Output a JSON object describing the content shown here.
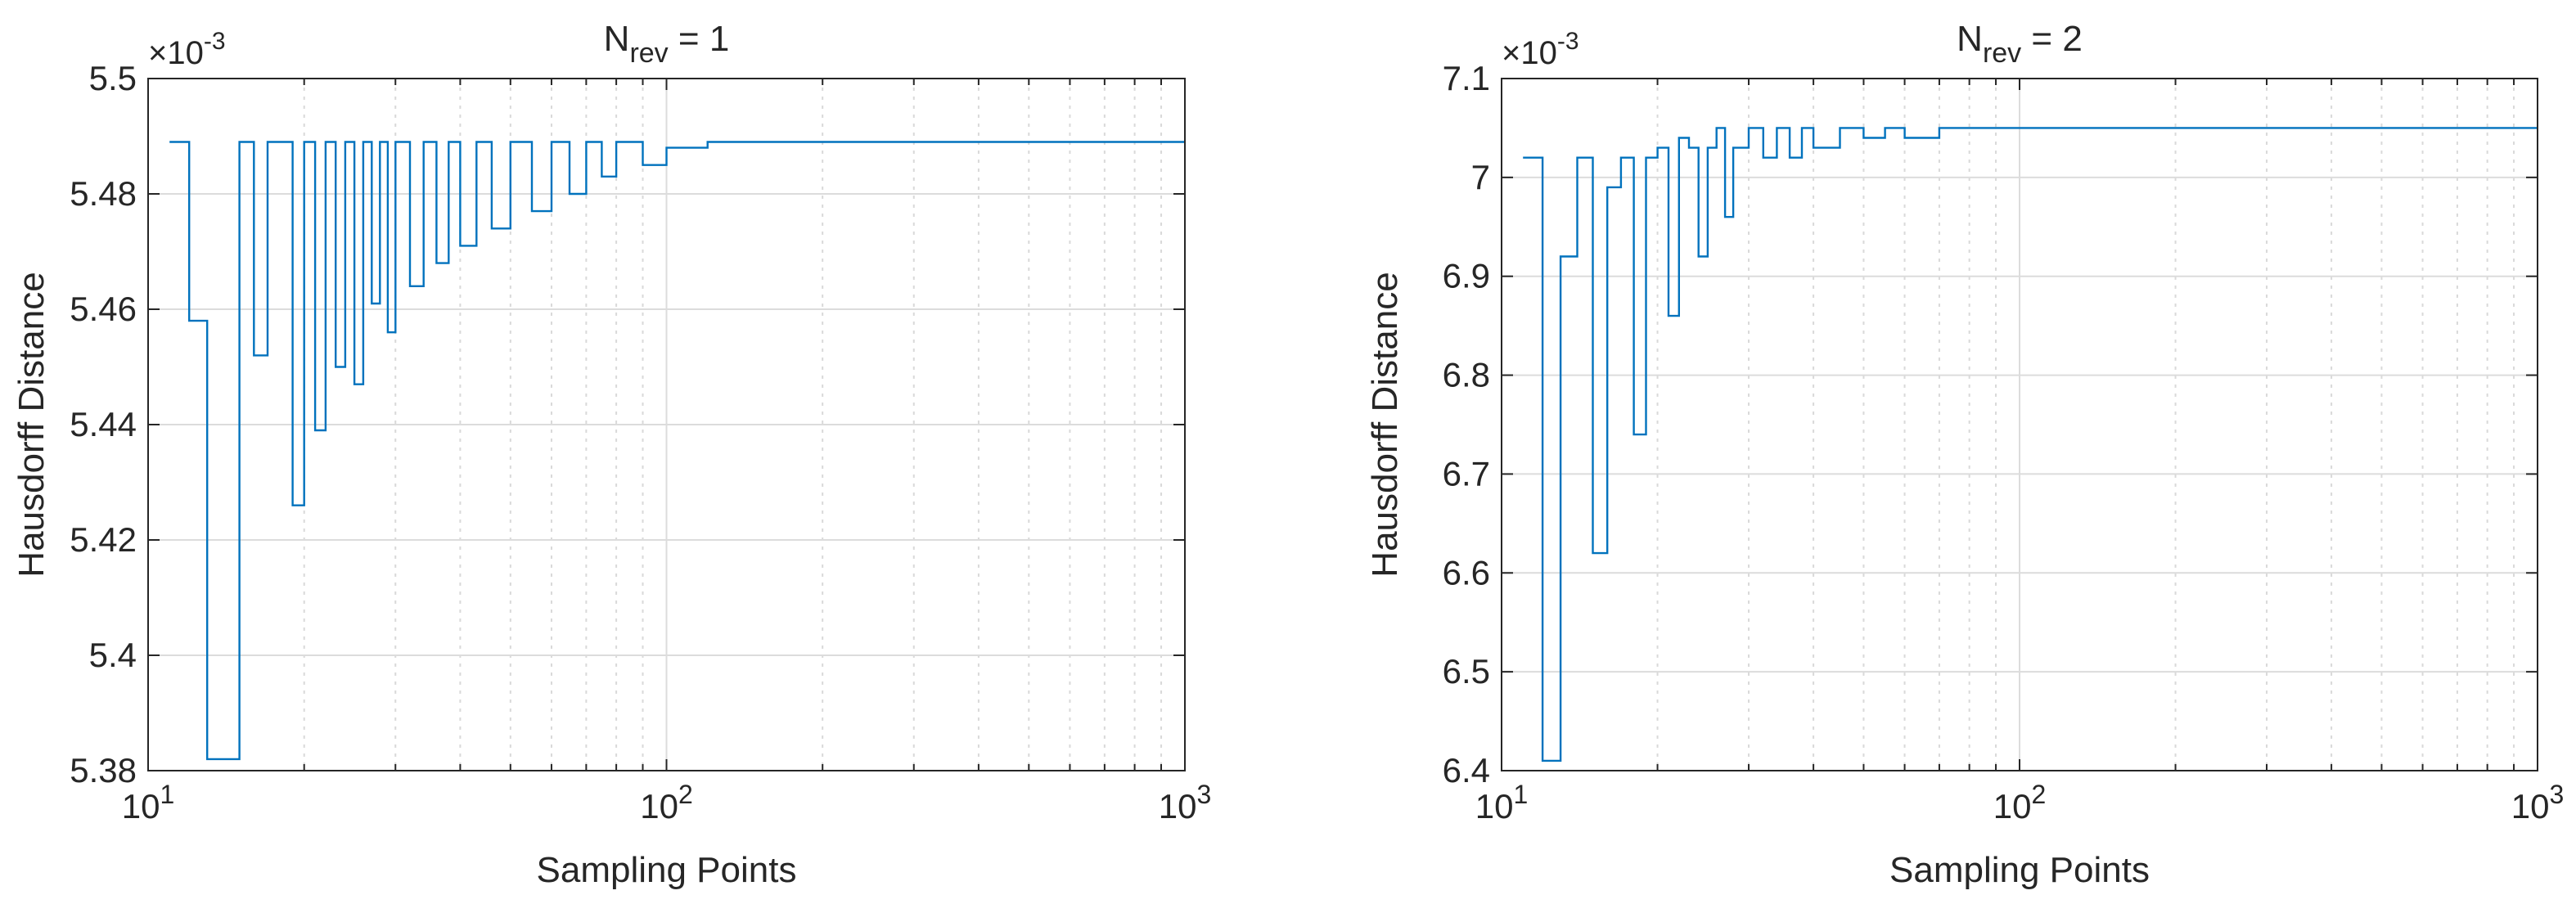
{
  "chart_data": [
    {
      "type": "line",
      "title_main": "N",
      "title_sub": "rev",
      "title_tail": " = 1",
      "xlabel": "Sampling Points",
      "ylabel": "Hausdorff Distance",
      "xscale": "log",
      "xlim": [
        10,
        1000
      ],
      "ylim": [
        0.00538,
        0.0055
      ],
      "xticks": [
        10,
        100,
        1000
      ],
      "xtick_base": "10",
      "xtick_exponents": [
        "1",
        "2",
        "3"
      ],
      "yticks": [
        0.00538,
        0.0054,
        0.00542,
        0.00544,
        0.00546,
        0.00548,
        0.0055
      ],
      "ytick_labels": [
        "5.38",
        "5.4",
        "5.42",
        "5.44",
        "5.46",
        "5.48",
        "5.5"
      ],
      "y_multiplier_base": "×10",
      "y_multiplier_exp": "-3",
      "grid": true,
      "series": [
        {
          "color": "#0072bd",
          "step": true,
          "x": [
            11,
            12,
            13,
            15,
            16,
            17,
            19,
            20,
            21,
            22,
            23,
            24,
            25,
            26,
            27,
            28,
            29,
            30,
            32,
            34,
            36,
            38,
            40,
            43,
            46,
            50,
            55,
            60,
            65,
            70,
            75,
            80,
            90,
            100,
            120,
            150,
            200,
            300,
            500,
            1000
          ],
          "y": [
            0.005489,
            0.005458,
            0.005382,
            0.005489,
            0.005452,
            0.005489,
            0.005426,
            0.005489,
            0.005439,
            0.005489,
            0.00545,
            0.005489,
            0.005447,
            0.005489,
            0.005461,
            0.005489,
            0.005456,
            0.005489,
            0.005464,
            0.005489,
            0.005468,
            0.005489,
            0.005471,
            0.005489,
            0.005474,
            0.005489,
            0.005477,
            0.005489,
            0.00548,
            0.005489,
            0.005483,
            0.005489,
            0.005485,
            0.005488,
            0.005489,
            0.005489,
            0.005489,
            0.005489,
            0.005489,
            0.005489
          ]
        }
      ]
    },
    {
      "type": "line",
      "title_main": "N",
      "title_sub": "rev",
      "title_tail": " = 2",
      "xlabel": "Sampling Points",
      "ylabel": "Hausdorff Distance",
      "xscale": "log",
      "xlim": [
        10,
        1000
      ],
      "ylim": [
        0.0064,
        0.0071
      ],
      "xticks": [
        10,
        100,
        1000
      ],
      "xtick_base": "10",
      "xtick_exponents": [
        "1",
        "2",
        "3"
      ],
      "yticks": [
        0.0064,
        0.0065,
        0.0066,
        0.0067,
        0.0068,
        0.0069,
        0.007,
        0.0071
      ],
      "ytick_labels": [
        "6.4",
        "6.5",
        "6.6",
        "6.7",
        "6.8",
        "6.9",
        "7",
        "7.1"
      ],
      "y_multiplier_base": "×10",
      "y_multiplier_exp": "-3",
      "grid": true,
      "series": [
        {
          "color": "#0072bd",
          "step": true,
          "x": [
            11,
            12,
            13,
            14,
            15,
            16,
            17,
            18,
            19,
            20,
            21,
            22,
            23,
            24,
            25,
            26,
            27,
            28,
            30,
            32,
            34,
            36,
            38,
            40,
            45,
            50,
            55,
            60,
            70,
            80,
            100,
            150,
            200,
            1000
          ],
          "y": [
            0.00702,
            0.00641,
            0.00692,
            0.00702,
            0.00662,
            0.00699,
            0.00702,
            0.00674,
            0.00702,
            0.00703,
            0.00686,
            0.00704,
            0.00703,
            0.00692,
            0.00703,
            0.00705,
            0.00696,
            0.00703,
            0.00705,
            0.00702,
            0.00705,
            0.00702,
            0.00705,
            0.00703,
            0.00705,
            0.00704,
            0.00705,
            0.00704,
            0.00705,
            0.00705,
            0.00705,
            0.00705,
            0.00705,
            0.00705
          ]
        }
      ]
    }
  ]
}
